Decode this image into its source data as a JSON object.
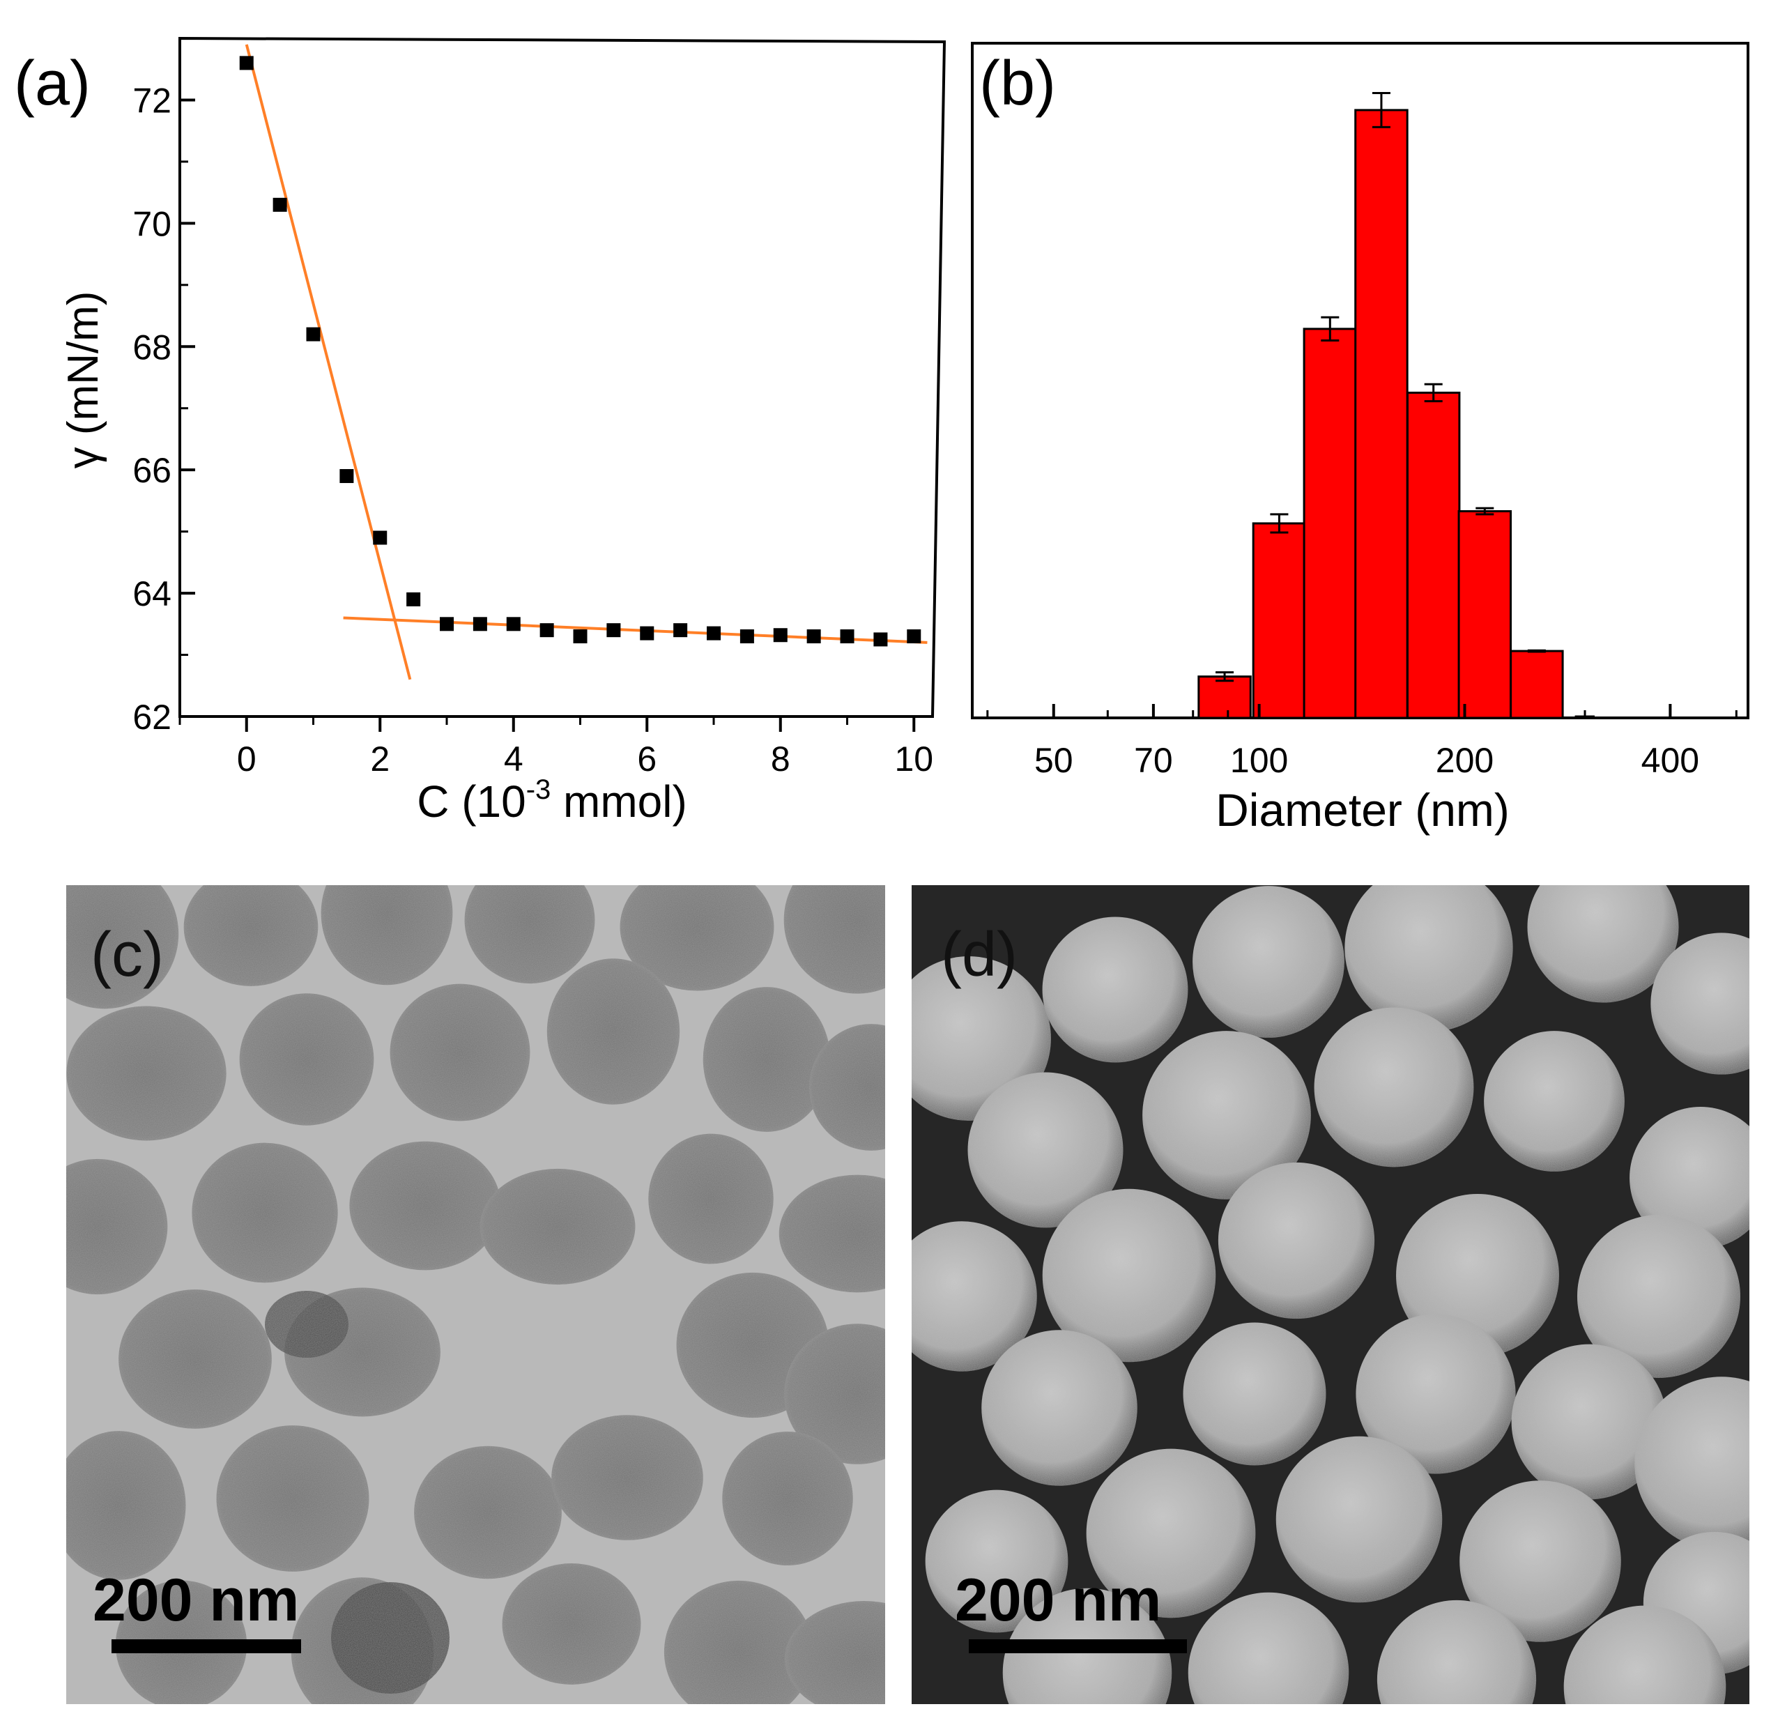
{
  "panels": {
    "a": {
      "label": "(a)"
    },
    "b": {
      "label": "(b)"
    },
    "c": {
      "label": "(c)",
      "scalebar": "200 nm"
    },
    "d": {
      "label": "(d)",
      "scalebar": "200 nm"
    }
  },
  "chart_data": [
    {
      "panel": "a",
      "type": "scatter",
      "xlabel_main": "C (10",
      "xlabel_sup": "-3",
      "xlabel_tail": " mmol)",
      "ylabel": "γ (mN/m)",
      "xlim": [
        -1,
        10.3
      ],
      "ylim": [
        62,
        73
      ],
      "xticks": [
        "0",
        "2",
        "4",
        "6",
        "8",
        "10"
      ],
      "yticks": [
        "62",
        "64",
        "66",
        "68",
        "70",
        "72"
      ],
      "grid": false,
      "marker_color": "#000000",
      "fit_color": "#ff7f27",
      "x": [
        0,
        0.5,
        1,
        1.5,
        2,
        2.5,
        3,
        3.5,
        4,
        4.5,
        5,
        5.5,
        6,
        6.5,
        7,
        7.5,
        8,
        8.5,
        9,
        9.5,
        10
      ],
      "y": [
        72.6,
        70.3,
        68.2,
        65.9,
        64.9,
        63.9,
        63.5,
        63.5,
        63.5,
        63.4,
        63.3,
        63.4,
        63.35,
        63.4,
        63.35,
        63.3,
        63.32,
        63.3,
        63.3,
        63.25,
        63.3
      ],
      "fit_lines": [
        {
          "x": [
            0,
            2.45
          ],
          "y": [
            72.9,
            62.6
          ]
        },
        {
          "x": [
            1.45,
            10.2
          ],
          "y": [
            63.6,
            63.2
          ]
        }
      ]
    },
    {
      "panel": "b",
      "type": "bar",
      "xscale": "log",
      "xlabel": "Diameter (nm)",
      "xlim": [
        38,
        520
      ],
      "xticks": [
        "50",
        "70",
        "100",
        "200",
        "400"
      ],
      "bar_color": "#ff0000",
      "grid": false,
      "categories": [
        89,
        107,
        127,
        151,
        180,
        214,
        255
      ],
      "values": [
        6.8,
        32,
        64,
        100,
        53.5,
        34,
        11
      ],
      "errors": [
        0.7,
        1.5,
        1.9,
        2.8,
        1.4,
        0.5,
        0.1
      ],
      "ylim": [
        0,
        111
      ]
    }
  ]
}
